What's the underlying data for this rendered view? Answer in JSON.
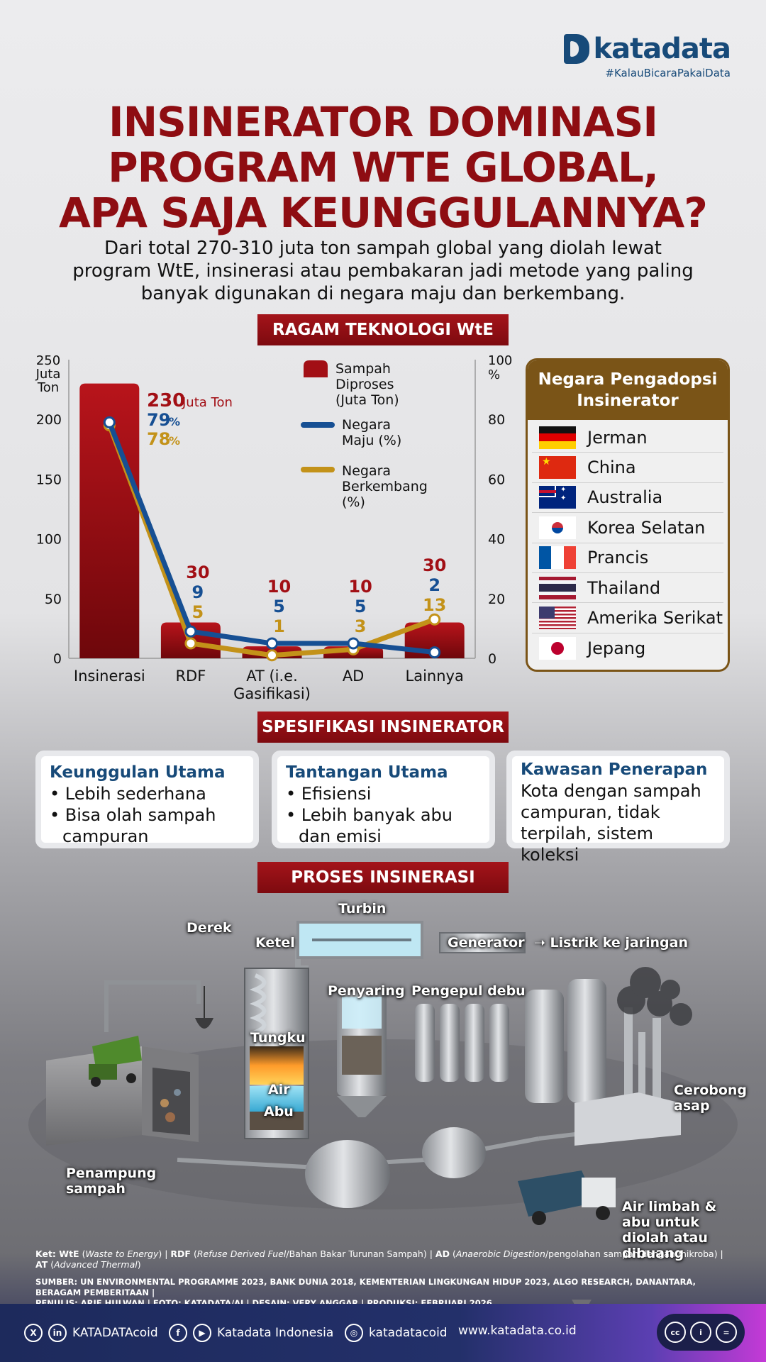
{
  "brand": {
    "name": "katadata",
    "tagline": "#KalauBicaraPakaiData"
  },
  "title_lines": [
    "INSINERATOR DOMINASI",
    "PROGRAM WTE GLOBAL,",
    "APA SAJA KEUNGGULANNYA?"
  ],
  "subtitle_lines": [
    "Dari total 270-310 juta ton sampah global yang diolah lewat",
    "program WtE, insinerasi atau pembakaran jadi metode yang paling",
    "banyak digunakan di negara maju dan berkembang."
  ],
  "sections": {
    "chart_banner": "RAGAM TEKNOLOGI WtE",
    "spec_banner": "SPESIFIKASI INSINERATOR",
    "process_banner": "PROSES INSINERASI"
  },
  "chart_data": {
    "type": "bar",
    "categories": [
      "Insinerasi",
      "RDF",
      "AT (i.e.|Gasifikasi)",
      "AD",
      "Lainnya"
    ],
    "series": [
      {
        "name": "Sampah Diproses (Juta Ton)",
        "kind": "bar",
        "axis": "left",
        "color": "#a20f15",
        "values": [
          230,
          30,
          10,
          10,
          30
        ]
      },
      {
        "name": "Negara Maju (%)",
        "kind": "line",
        "axis": "right",
        "color": "#164f93",
        "values": [
          79,
          9,
          5,
          5,
          2
        ]
      },
      {
        "name": "Negara Berkembang (%)",
        "kind": "line",
        "axis": "right",
        "color": "#c39219",
        "values": [
          78,
          5,
          1,
          3,
          13
        ]
      }
    ],
    "legend_lines": [
      [
        "Sampah",
        "Diproses",
        "(Juta Ton)"
      ],
      [
        "Negara",
        "Maju (%)"
      ],
      [
        "Negara",
        "Berkembang",
        "(%)"
      ]
    ],
    "left_axis": {
      "label_lines": [
        "250",
        "Juta",
        "Ton"
      ],
      "ticks": [
        0,
        50,
        100,
        150,
        200
      ],
      "range": [
        0,
        250
      ]
    },
    "right_axis": {
      "label_lines": [
        "100",
        "%"
      ],
      "ticks": [
        0,
        20,
        40,
        60,
        80
      ],
      "range": [
        0,
        100
      ]
    },
    "first_bar_unit": "Juta Ton",
    "percent_suffix": "%",
    "legend_position": "top-center"
  },
  "countries": {
    "title_lines": [
      "Negara Pengadopsi",
      "Insinerator"
    ],
    "items": [
      {
        "name": "Jerman",
        "flag": "germany-flag"
      },
      {
        "name": "China",
        "flag": "china-flag"
      },
      {
        "name": "Australia",
        "flag": "australia-flag"
      },
      {
        "name": "Korea Selatan",
        "flag": "korea-flag"
      },
      {
        "name": "Prancis",
        "flag": "france-flag"
      },
      {
        "name": "Thailand",
        "flag": "thailand-flag"
      },
      {
        "name": "Amerika Serikat",
        "flag": "usa-flag"
      },
      {
        "name": "Jepang",
        "flag": "japan-flag"
      }
    ]
  },
  "spec": {
    "advantages": {
      "title": "Keunggulan Utama",
      "items": [
        "Lebih sederhana",
        "Bisa olah sampah campuran"
      ]
    },
    "challenges": {
      "title": "Tantangan Utama",
      "items": [
        "Efisiensi",
        "Lebih banyak abu dan emisi"
      ]
    },
    "area": {
      "title": "Kawasan Penerapan",
      "text": "Kota dengan sampah campuran, tidak terpilah, sistem koleksi"
    }
  },
  "process": {
    "labels": {
      "turbine": "Turbin",
      "crane": "Derek",
      "boiler": "Ketel",
      "generator": "Generator",
      "grid": "Listrik ke jaringan",
      "filter": "Penyaring",
      "dust": "Pengepul debu",
      "furnace": "Tungku",
      "water": "Air",
      "ash": "Abu",
      "chimney": "Cerobong asap",
      "bunker": "Penampung sampah",
      "wastewater": "Air limbah & abu untuk diolah atau dibuang"
    }
  },
  "notes": {
    "wte_abbr": "WtE",
    "wte_full": "Waste to Energy",
    "rdf_abbr": "RDF",
    "rdf_full": "Refuse Derived Fuel",
    "rdf_local": "/Bahan Bakar Turunan Sampah)",
    "ad_abbr": "AD",
    "ad_full": "Anaerobic Digestion",
    "ad_local": "/pengolahan sampah dengan mikroba)",
    "at_abbr": "AT",
    "at_full": "Advanced Thermal",
    "sources": "SUMBER: UN ENVIRONMENTAL PROGRAMME 2023, BANK DUNIA 2018, KEMENTERIAN LINGKUNGAN HIDUP 2023, ALGO RESEARCH, DANANTARA, BERAGAM PEMBERITAAN |",
    "credits": "PENULIS: ARIF HULWAN | FOTO: KATADATA/AI | DESAIN: VERY ANGGAR | PRODUKSI: FEBRUARI 2026"
  },
  "footer": {
    "social1": "KATADATAcoid",
    "social2": "Katadata Indonesia",
    "social3": "katadatacoid",
    "website": "www.katadata.co.id"
  }
}
